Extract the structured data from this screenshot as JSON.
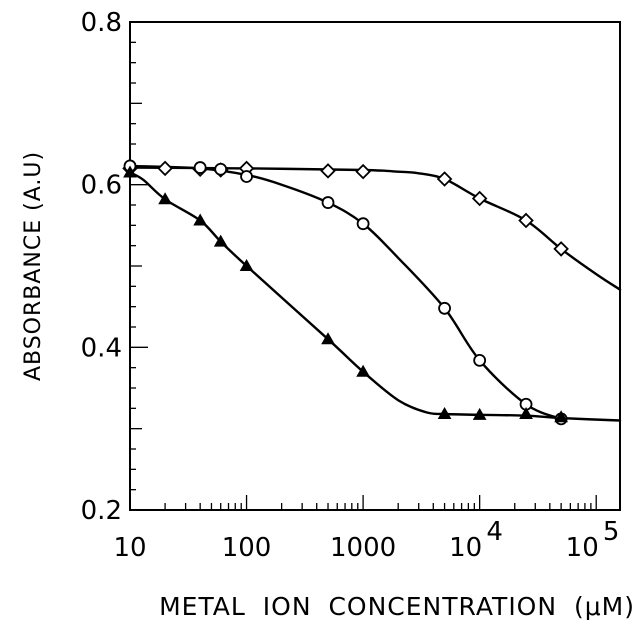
{
  "chart_data": {
    "type": "line",
    "xscale": "log",
    "xlim": [
      10,
      160000
    ],
    "ylim": [
      0.2,
      0.8
    ],
    "xlabel": "METAL ION CONCENTRATION (μM)",
    "ylabel": "ABSORBANCE (A.U)",
    "x_tick_labels": [
      {
        "value": 10,
        "label": "10"
      },
      {
        "value": 100,
        "label": "100"
      },
      {
        "value": 1000,
        "label": "1000"
      },
      {
        "value": 10000,
        "base": "10",
        "exp": "4"
      },
      {
        "value": 100000,
        "base": "10",
        "exp": "5"
      }
    ],
    "y_tick_labels": [
      {
        "value": 0.2,
        "label": "0.2"
      },
      {
        "value": 0.4,
        "label": "0.4"
      },
      {
        "value": 0.6,
        "label": "0.6"
      },
      {
        "value": 0.8,
        "label": "0.8"
      }
    ],
    "series": [
      {
        "marker": "diamond",
        "x": [
          10,
          20,
          40,
          60,
          100,
          500,
          1000,
          5000,
          10000,
          25000,
          50000
        ],
        "y": [
          0.62,
          0.62,
          0.619,
          0.618,
          0.62,
          0.617,
          0.616,
          0.607,
          0.583,
          0.556,
          0.521
        ],
        "curve_x": [
          10,
          100,
          1000,
          2000,
          3000,
          5000,
          10000,
          25000,
          50000,
          100000,
          160000
        ],
        "curve_y": [
          0.621,
          0.62,
          0.618,
          0.616,
          0.614,
          0.607,
          0.583,
          0.556,
          0.521,
          0.49,
          0.471
        ]
      },
      {
        "marker": "circle",
        "x": [
          10,
          40,
          60,
          100,
          500,
          1000,
          5000,
          10000,
          25000,
          50000
        ],
        "y": [
          0.623,
          0.621,
          0.619,
          0.61,
          0.578,
          0.552,
          0.448,
          0.384,
          0.33,
          0.312
        ],
        "curve_x": [
          10,
          40,
          100,
          200,
          500,
          1000,
          2000,
          5000,
          10000,
          25000,
          50000
        ],
        "curve_y": [
          0.623,
          0.62,
          0.612,
          0.6,
          0.578,
          0.552,
          0.51,
          0.448,
          0.384,
          0.33,
          0.312
        ]
      },
      {
        "marker": "triangle",
        "x": [
          10,
          20,
          40,
          60,
          100,
          500,
          1000,
          5000,
          10000,
          25000,
          50000
        ],
        "y": [
          0.615,
          0.582,
          0.556,
          0.53,
          0.5,
          0.41,
          0.37,
          0.318,
          0.317,
          0.318,
          0.314
        ],
        "curve_x": [
          10,
          13,
          20,
          40,
          60,
          100,
          500,
          1000,
          2000,
          3500,
          5000,
          10000,
          25000,
          50000,
          160000
        ],
        "curve_y": [
          0.615,
          0.606,
          0.582,
          0.556,
          0.53,
          0.5,
          0.41,
          0.37,
          0.335,
          0.32,
          0.318,
          0.317,
          0.316,
          0.313,
          0.31
        ]
      }
    ]
  }
}
